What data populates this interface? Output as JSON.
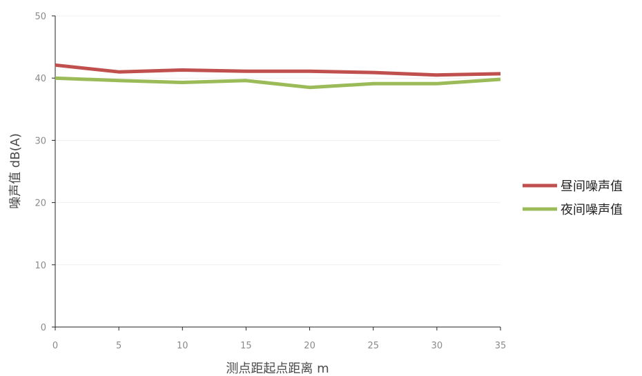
{
  "chart_data": {
    "type": "line",
    "xlabel": "测点距起点距离 m",
    "ylabel": "噪声值 dB(A)",
    "x": [
      0,
      5,
      10,
      15,
      20,
      25,
      30,
      35
    ],
    "xlim": [
      0,
      35
    ],
    "ylim": [
      0,
      50
    ],
    "x_ticks": [
      0,
      5,
      10,
      15,
      20,
      25,
      30,
      35
    ],
    "y_ticks": [
      0,
      10,
      20,
      30,
      40,
      50
    ],
    "grid": true,
    "legend_position": "right",
    "series": [
      {
        "name": "昼间噪声值",
        "color": "#c0504d",
        "values": [
          42.1,
          41.0,
          41.3,
          41.1,
          41.1,
          40.9,
          40.5,
          40.7
        ]
      },
      {
        "name": "夜间噪声值",
        "color": "#9bbb59",
        "values": [
          40.0,
          39.6,
          39.3,
          39.6,
          38.5,
          39.1,
          39.1,
          39.8
        ]
      }
    ]
  }
}
